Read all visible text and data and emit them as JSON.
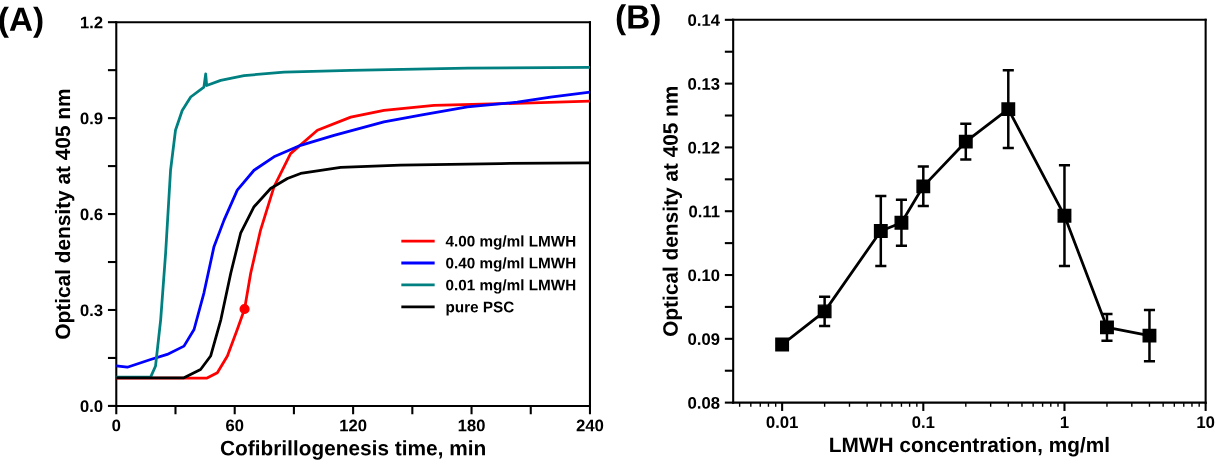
{
  "chart_data": [
    {
      "type": "line",
      "title": "(A)",
      "xlabel": "Cofibrillogenesis time, min",
      "ylabel": "Optical density at 405 nm",
      "xlim": [
        0,
        240
      ],
      "xticks": [
        0,
        {
          "value": 30,
          "label": null
        },
        60,
        {
          "value": 90,
          "label": null
        },
        120,
        {
          "value": 150,
          "label": null
        },
        180,
        {
          "value": 210,
          "label": null
        },
        240
      ],
      "ylim": [
        0,
        1.2
      ],
      "yticks": [
        {
          "value": 0,
          "label": "0.0"
        },
        {
          "value": 0.15,
          "label": null
        },
        {
          "value": 0.3,
          "label": "0.3"
        },
        {
          "value": 0.45,
          "label": null
        },
        {
          "value": 0.6,
          "label": "0.6"
        },
        {
          "value": 0.75,
          "label": null
        },
        {
          "value": 0.9,
          "label": "0.9"
        },
        {
          "value": 1.05,
          "label": null
        },
        {
          "value": 1.2,
          "label": "1.2"
        }
      ],
      "grid": false,
      "legend": "bottom right",
      "marker": "none",
      "line_style": "solid",
      "series": [
        {
          "name": "4.00 mg/ml LMWH",
          "color": "#ff0000",
          "x": [
            0,
            46,
            51.2,
            56.3,
            61.3,
            65,
            68.1,
            73.1,
            79.9,
            88.3,
            101.9,
            118.8,
            135.6,
            161,
            194.8,
            240
          ],
          "values": [
            0.087,
            0.087,
            0.104,
            0.156,
            0.239,
            0.303,
            0.415,
            0.55,
            0.685,
            0.789,
            0.862,
            0.903,
            0.924,
            0.94,
            0.945,
            0.953
          ]
        },
        {
          "name": "0.40 mg/ml LMWH",
          "color": "#0000ff",
          "x": [
            0,
            5.6,
            17.4,
            25.8,
            34.3,
            39.4,
            44.4,
            49.5,
            54.6,
            61.3,
            69.8,
            79.9,
            93.4,
            110.3,
            135.6,
            154.2,
            177.9,
            203.2,
            220,
            240
          ],
          "values": [
            0.125,
            0.121,
            0.145,
            0.161,
            0.187,
            0.239,
            0.353,
            0.498,
            0.581,
            0.675,
            0.737,
            0.779,
            0.815,
            0.846,
            0.888,
            0.909,
            0.935,
            0.95,
            0.966,
            0.981
          ]
        },
        {
          "name": "0.01 mg/ml LMWH",
          "color": "#008080",
          "x": [
            0,
            17.4,
            19.9,
            22.5,
            25,
            27.5,
            30,
            33.4,
            37.7,
            44.4,
            45.3,
            45.8,
            52.9,
            64.7,
            85,
            118.8,
            177.9,
            240
          ],
          "values": [
            0.09,
            0.09,
            0.125,
            0.27,
            0.478,
            0.737,
            0.862,
            0.924,
            0.966,
            0.997,
            1.038,
            1.002,
            1.018,
            1.033,
            1.044,
            1.049,
            1.056,
            1.059
          ]
        },
        {
          "name": "pure PSC",
          "color": "#000000",
          "x": [
            0,
            34.3,
            42.7,
            47.8,
            53,
            58,
            63,
            69.8,
            78.2,
            86.7,
            93.4,
            113.7,
            144,
            194.8,
            240
          ],
          "values": [
            0.088,
            0.088,
            0.114,
            0.156,
            0.27,
            0.415,
            0.54,
            0.623,
            0.68,
            0.711,
            0.727,
            0.746,
            0.753,
            0.758,
            0.76
          ]
        },
        {
          "type": "scatter",
          "marker": "circle",
          "color": "#ff0000",
          "x": [
            65
          ],
          "values": [
            0.303
          ]
        }
      ]
    },
    {
      "type": "line",
      "title": "(B)",
      "xlabel": "LMWH concentration, mg/ml",
      "ylabel": "Optical density at 405 nm",
      "log": "x",
      "xlim": [
        0.0045,
        10
      ],
      "xticks": [
        {
          "value": 0.01,
          "label": "0.01"
        },
        {
          "value": 0.1,
          "label": "0.1"
        },
        {
          "value": 1,
          "label": "1"
        },
        {
          "value": 10,
          "label": "10"
        }
      ],
      "ylim": [
        0.08,
        0.14
      ],
      "yticks": [
        {
          "value": 0.08,
          "label": "0.08"
        },
        {
          "value": 0.085,
          "label": null
        },
        {
          "value": 0.09,
          "label": "0.09"
        },
        {
          "value": 0.095,
          "label": null
        },
        {
          "value": 0.1,
          "label": "0.10"
        },
        {
          "value": 0.105,
          "label": null
        },
        {
          "value": 0.11,
          "label": "0.11"
        },
        {
          "value": 0.115,
          "label": null
        },
        {
          "value": 0.12,
          "label": "0.12"
        },
        {
          "value": 0.125,
          "label": null
        },
        {
          "value": 0.13,
          "label": "0.13"
        },
        {
          "value": 0.135,
          "label": null
        },
        {
          "value": 0.14,
          "label": "0.14"
        }
      ],
      "grid": false,
      "marker": "square",
      "line_style": "solid",
      "series": [
        {
          "color": "#000000",
          "x": [
            0.01,
            0.02,
            0.05,
            0.07,
            0.1,
            0.2,
            0.4,
            1,
            2,
            4
          ],
          "values": [
            0.0891,
            0.0943,
            0.1069,
            0.1082,
            0.1139,
            0.1209,
            0.126,
            0.1093,
            0.0918,
            0.0905
          ],
          "errors": [
            0.0005,
            0.0023,
            0.0055,
            0.0036,
            0.0031,
            0.0028,
            0.0061,
            0.0079,
            0.0021,
            0.004
          ]
        }
      ]
    }
  ]
}
